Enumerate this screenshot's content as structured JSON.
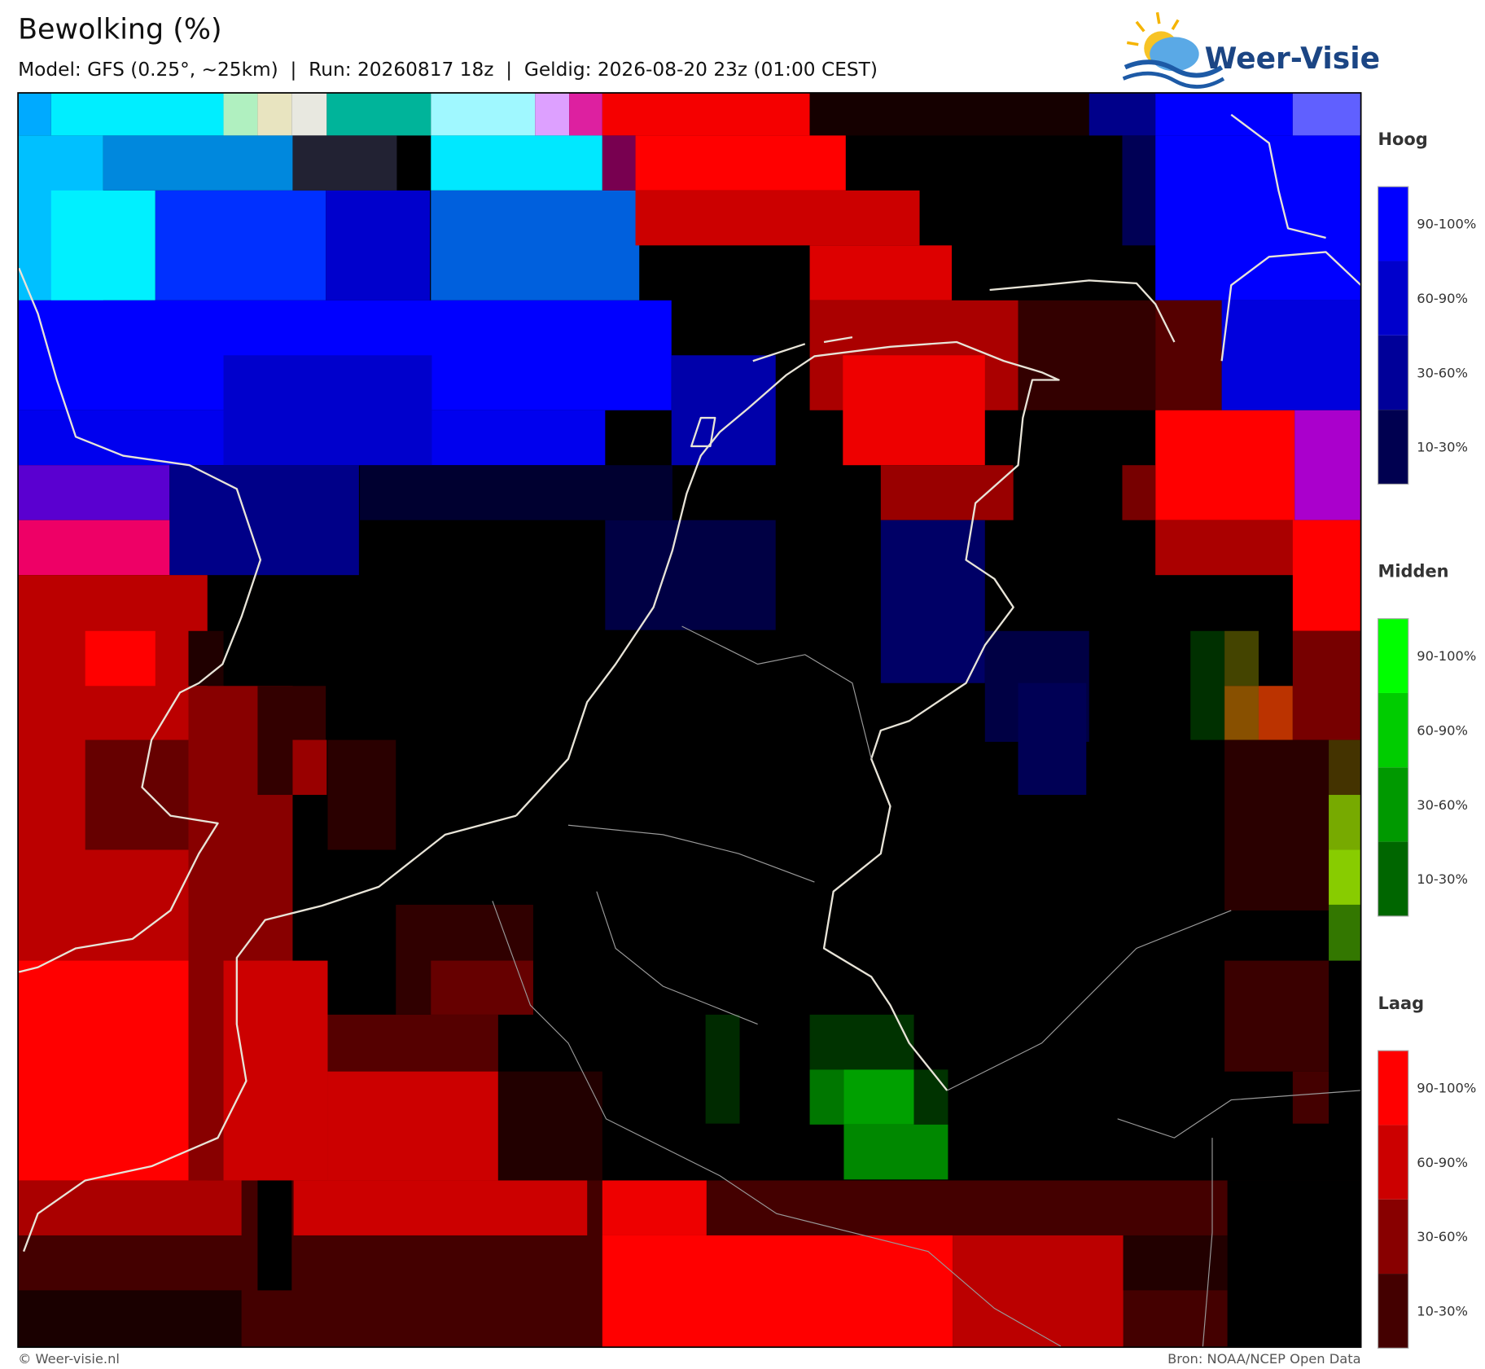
{
  "header": {
    "title": "Bewolking (%)",
    "subtitle": "Model: GFS (0.25°, ~25km)  |  Run: 20260817 18z  |  Geldig: 2026-08-20 23z (01:00 CEST)"
  },
  "logo": {
    "text": "Weer-Visie"
  },
  "legend": [
    {
      "title": "Hoog",
      "labels": [
        "90-100%",
        "60-90%",
        "30-60%",
        "10-30%"
      ]
    },
    {
      "title": "Midden",
      "labels": [
        "90-100%",
        "60-90%",
        "30-60%",
        "10-30%"
      ]
    },
    {
      "title": "Laag",
      "labels": [
        "90-100%",
        "60-90%",
        "30-60%",
        "10-30%"
      ]
    }
  ],
  "footer": {
    "left": "© Weer-visie.nl",
    "right": "Bron: NOAA/NCEP Open Data"
  }
}
